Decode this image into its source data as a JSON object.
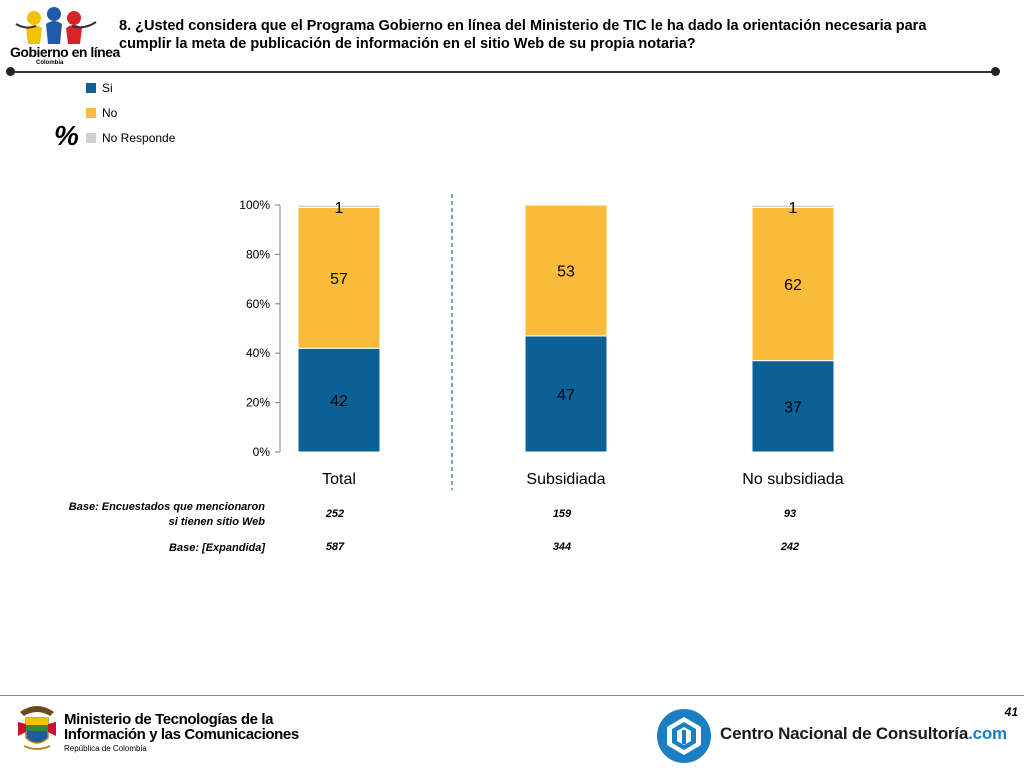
{
  "header": {
    "question": "8. ¿Usted considera que el Programa Gobierno en línea del Ministerio de TIC le ha dado la orientación necesaria para cumplir la meta de publicación de información en el sitio Web de su propia notaria?",
    "logo_text": "Gobierno en línea",
    "logo_subtext": "Colombia"
  },
  "legend": [
    {
      "label": "Si",
      "color": "#0b6196"
    },
    {
      "label": "No",
      "color": "#fbbb3a"
    },
    {
      "label": "No Responde",
      "color": "#d0d0d0"
    }
  ],
  "percent_symbol": "%",
  "chart_data": {
    "type": "bar",
    "stacked": true,
    "categories": [
      "Total",
      "Subsidiada",
      "No subsidiada"
    ],
    "series": [
      {
        "name": "Si",
        "values": [
          42,
          47,
          37
        ],
        "color": "#0b6196"
      },
      {
        "name": "No",
        "values": [
          57,
          53,
          62
        ],
        "color": "#fbbb3a"
      },
      {
        "name": "No Responde",
        "values": [
          1,
          null,
          1
        ],
        "color": "#d0d0d0"
      }
    ],
    "ylim": [
      0,
      100
    ],
    "yticks": [
      0,
      20,
      40,
      60,
      80,
      100
    ],
    "ytick_labels": [
      "0%",
      "20%",
      "40%",
      "60%",
      "80%",
      "100%"
    ],
    "separator_after": "Total"
  },
  "bases": [
    {
      "label_line1": "Base: Encuestados que mencionaron",
      "label_line2": "si tienen sitio Web",
      "values": [
        "252",
        "159",
        "93"
      ]
    },
    {
      "label_line1": "Base: [Expandida]",
      "label_line2": "",
      "values": [
        "587",
        "344",
        "242"
      ]
    }
  ],
  "footer": {
    "page_number": "41",
    "ministry_line1": "Ministerio de Tecnologías de la",
    "ministry_line2": "Información y las Comunicaciones",
    "ministry_sub": "República de Colombia",
    "cnc_name": "Centro Nacional de Consultoría",
    "cnc_domain": ".com"
  }
}
